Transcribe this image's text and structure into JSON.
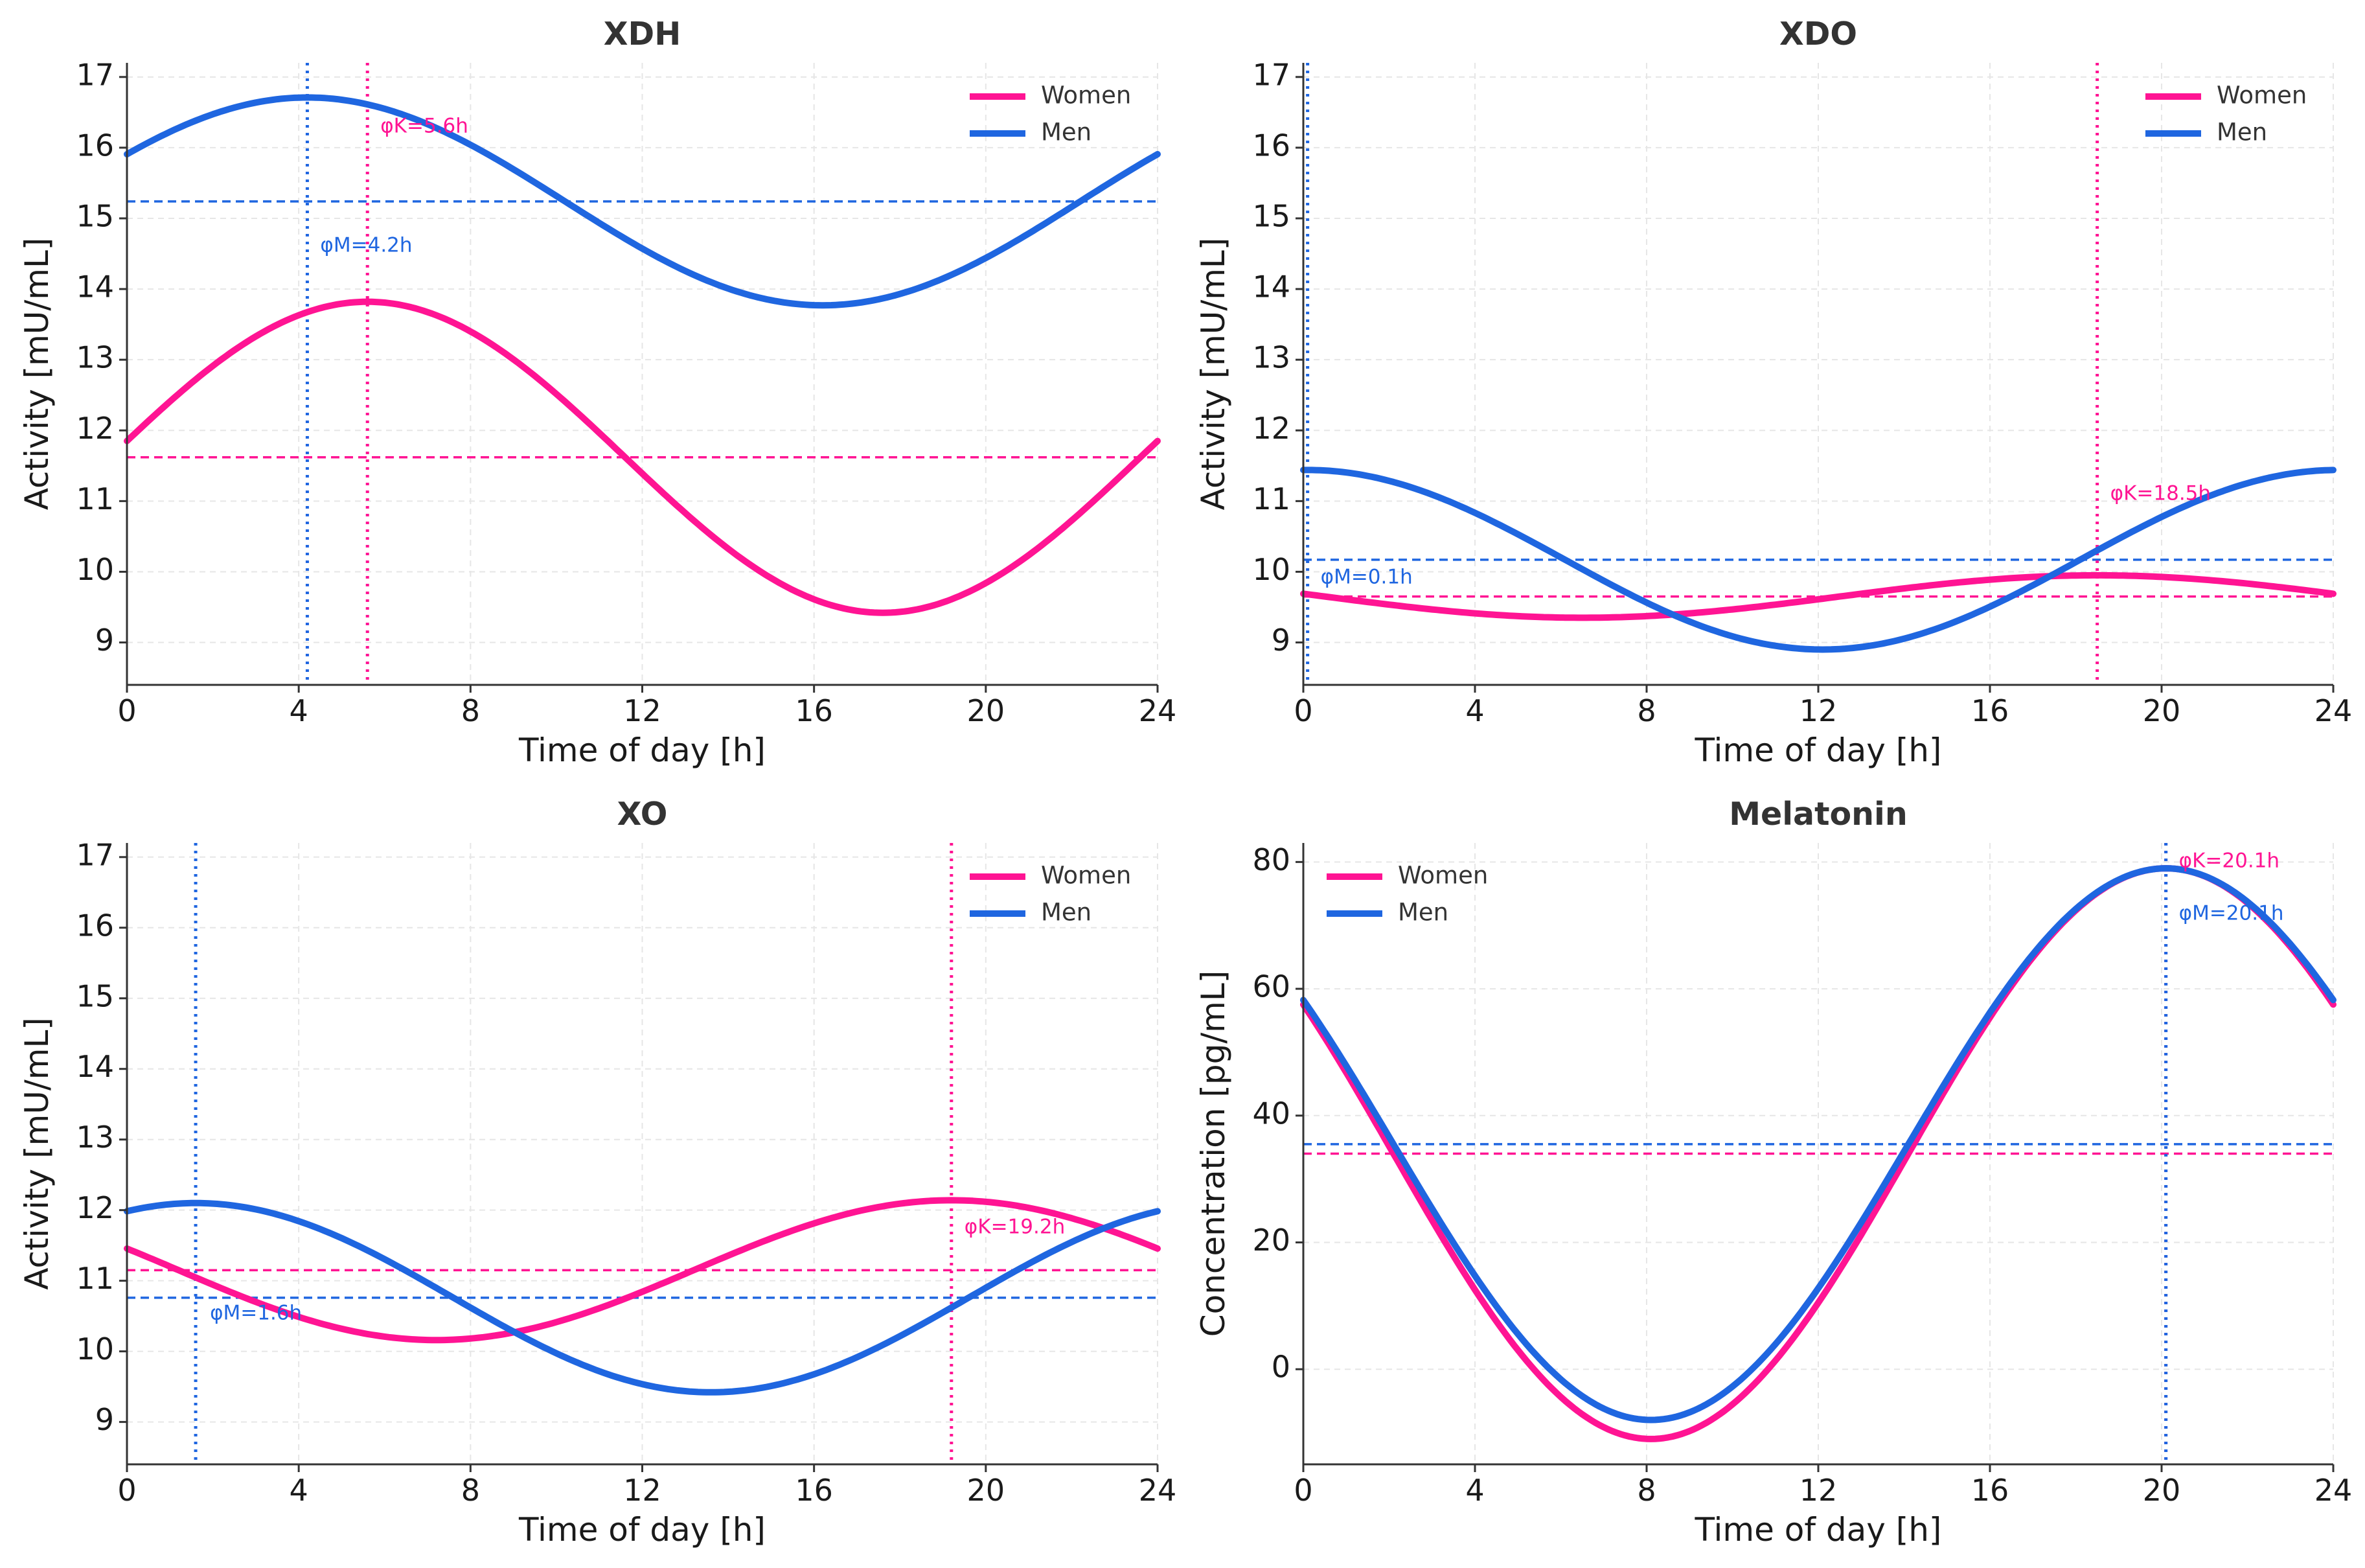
{
  "figure": {
    "colors": {
      "women": "#ff1493",
      "men": "#1f66e0",
      "axis": "#333333",
      "grid": "#e6e6e6"
    }
  },
  "chart_data": [
    {
      "type": "line",
      "title": "XDH",
      "xlabel": "Time of day [h]",
      "ylabel": "Activity [mU/mL]",
      "xlim": [
        0,
        24
      ],
      "ylim": [
        8.4,
        17.2
      ],
      "xticks": [
        0,
        4,
        8,
        12,
        16,
        20,
        24
      ],
      "yticks": [
        9,
        10,
        11,
        12,
        13,
        14,
        15,
        16,
        17
      ],
      "grid": true,
      "legend": {
        "position": "top-right",
        "labels": [
          "Women",
          "Men"
        ]
      },
      "series": [
        {
          "name": "Women",
          "mesor": 11.62,
          "amplitude": 2.2,
          "acrophase": 5.6,
          "phase_label": "φK=5.6h"
        },
        {
          "name": "Men",
          "mesor": 15.24,
          "amplitude": 1.47,
          "acrophase": 4.2,
          "phase_label": "φM=4.2h"
        }
      ]
    },
    {
      "type": "line",
      "title": "XDO",
      "xlabel": "Time of day [h]",
      "ylabel": "Activity [mU/mL]",
      "xlim": [
        0,
        24
      ],
      "ylim": [
        8.4,
        17.2
      ],
      "xticks": [
        0,
        4,
        8,
        12,
        16,
        20,
        24
      ],
      "yticks": [
        9,
        10,
        11,
        12,
        13,
        14,
        15,
        16,
        17
      ],
      "grid": true,
      "legend": {
        "position": "top-right",
        "labels": [
          "Women",
          "Men"
        ]
      },
      "series": [
        {
          "name": "Women",
          "mesor": 9.65,
          "amplitude": 0.3,
          "acrophase": 18.5,
          "phase_label": "φK=18.5h"
        },
        {
          "name": "Men",
          "mesor": 10.17,
          "amplitude": 1.27,
          "acrophase": 0.1,
          "phase_label": "φM=0.1h"
        }
      ]
    },
    {
      "type": "line",
      "title": "XO",
      "xlabel": "Time of day [h]",
      "ylabel": "Activity [mU/mL]",
      "xlim": [
        0,
        24
      ],
      "ylim": [
        8.4,
        17.2
      ],
      "xticks": [
        0,
        4,
        8,
        12,
        16,
        20,
        24
      ],
      "yticks": [
        9,
        10,
        11,
        12,
        13,
        14,
        15,
        16,
        17
      ],
      "grid": true,
      "legend": {
        "position": "top-right",
        "labels": [
          "Women",
          "Men"
        ]
      },
      "series": [
        {
          "name": "Women",
          "mesor": 11.15,
          "amplitude": 0.99,
          "acrophase": 19.2,
          "phase_label": "φK=19.2h"
        },
        {
          "name": "Men",
          "mesor": 10.76,
          "amplitude": 1.34,
          "acrophase": 1.6,
          "phase_label": "φM=1.6h"
        }
      ]
    },
    {
      "type": "line",
      "title": "Melatonin",
      "xlabel": "Time of day [h]",
      "ylabel": "Concentration [pg/mL]",
      "xlim": [
        0,
        24
      ],
      "ylim": [
        -15,
        83
      ],
      "xticks": [
        0,
        4,
        8,
        12,
        16,
        20,
        24
      ],
      "yticks": [
        0,
        20,
        40,
        60,
        80
      ],
      "grid": true,
      "legend": {
        "position": "top-left",
        "labels": [
          "Women",
          "Men"
        ]
      },
      "series": [
        {
          "name": "Women",
          "mesor": 34.0,
          "amplitude": 45.0,
          "acrophase": 20.1,
          "phase_label": "φK=20.1h"
        },
        {
          "name": "Men",
          "mesor": 35.5,
          "amplitude": 43.5,
          "acrophase": 20.1,
          "phase_label": "φM=20.1h"
        }
      ]
    }
  ]
}
